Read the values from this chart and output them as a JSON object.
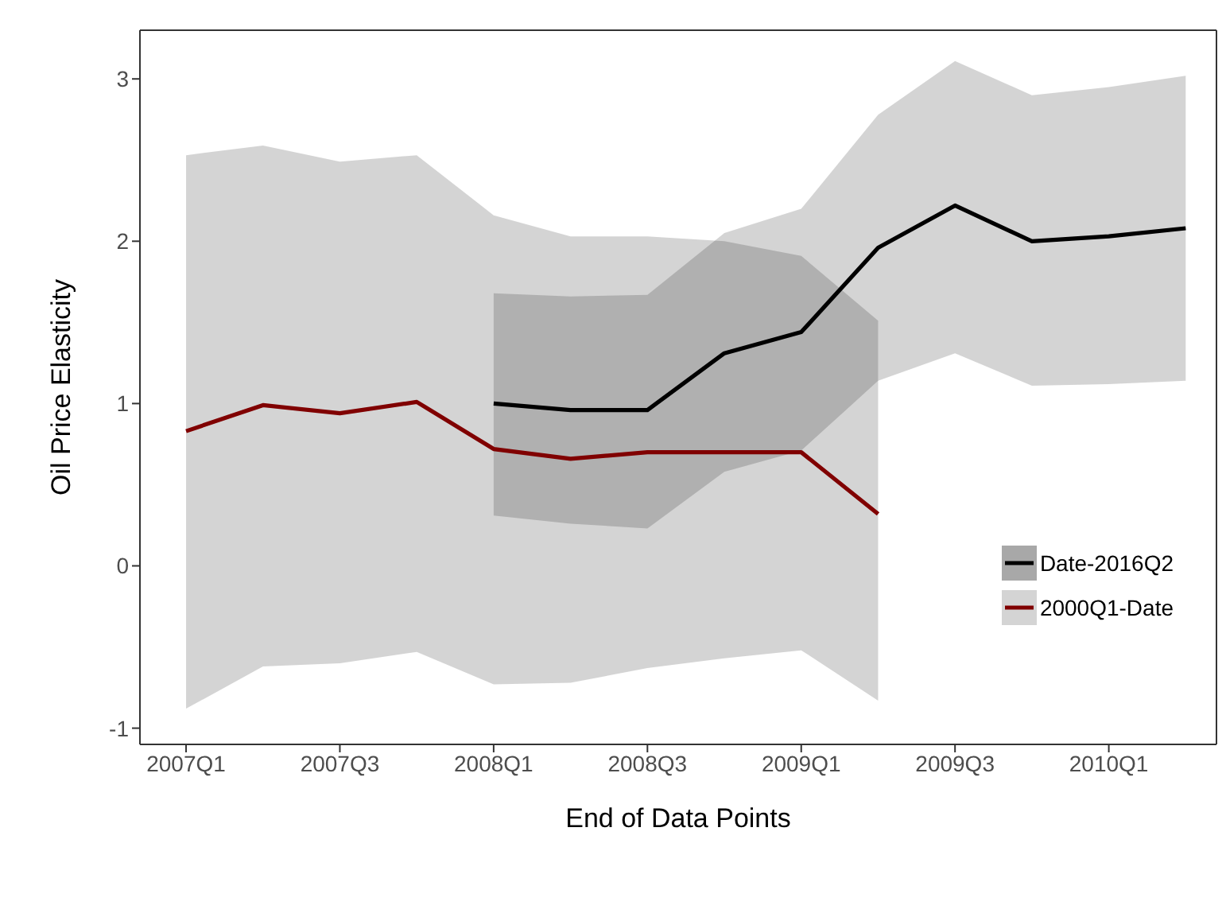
{
  "chart_data": {
    "type": "line",
    "xlabel": "End of Data Points",
    "ylabel": "Oil Price Elasticity",
    "categories": [
      "2007Q1",
      null,
      "2007Q3",
      null,
      "2008Q1",
      null,
      "2008Q3",
      null,
      "2009Q1",
      null,
      "2009Q3",
      null,
      "2010Q1",
      null
    ],
    "series": [
      {
        "name": "Date-2016Q2",
        "color": "#000000",
        "values": [
          null,
          null,
          null,
          null,
          1.0,
          0.96,
          0.96,
          1.31,
          1.44,
          1.96,
          2.22,
          2.0,
          2.03,
          2.08
        ],
        "lower": [
          null,
          null,
          null,
          null,
          0.31,
          0.26,
          0.23,
          0.58,
          0.71,
          1.14,
          1.31,
          1.11,
          1.12,
          1.14
        ],
        "upper": [
          null,
          null,
          null,
          null,
          1.68,
          1.66,
          1.67,
          2.05,
          2.2,
          2.78,
          3.11,
          2.9,
          2.95,
          3.02
        ]
      },
      {
        "name": "2000Q1-Date",
        "color": "#800000",
        "values": [
          0.83,
          0.99,
          0.94,
          1.01,
          0.72,
          0.66,
          0.7,
          0.7,
          0.7,
          0.32,
          null,
          null,
          null,
          null
        ],
        "lower": [
          -0.88,
          -0.62,
          -0.6,
          -0.53,
          -0.73,
          -0.72,
          -0.63,
          -0.57,
          -0.52,
          -0.83,
          null,
          null,
          null,
          null
        ],
        "upper": [
          2.53,
          2.59,
          2.49,
          2.53,
          2.16,
          2.03,
          2.03,
          2.0,
          1.91,
          1.51,
          null,
          null,
          null,
          null
        ]
      }
    ],
    "ylim": [
      -1.1,
      3.3
    ],
    "yticks": [
      -1,
      0,
      1,
      2,
      3
    ],
    "grid": false,
    "legend": "right",
    "marker": "none",
    "line_style": "solid"
  }
}
